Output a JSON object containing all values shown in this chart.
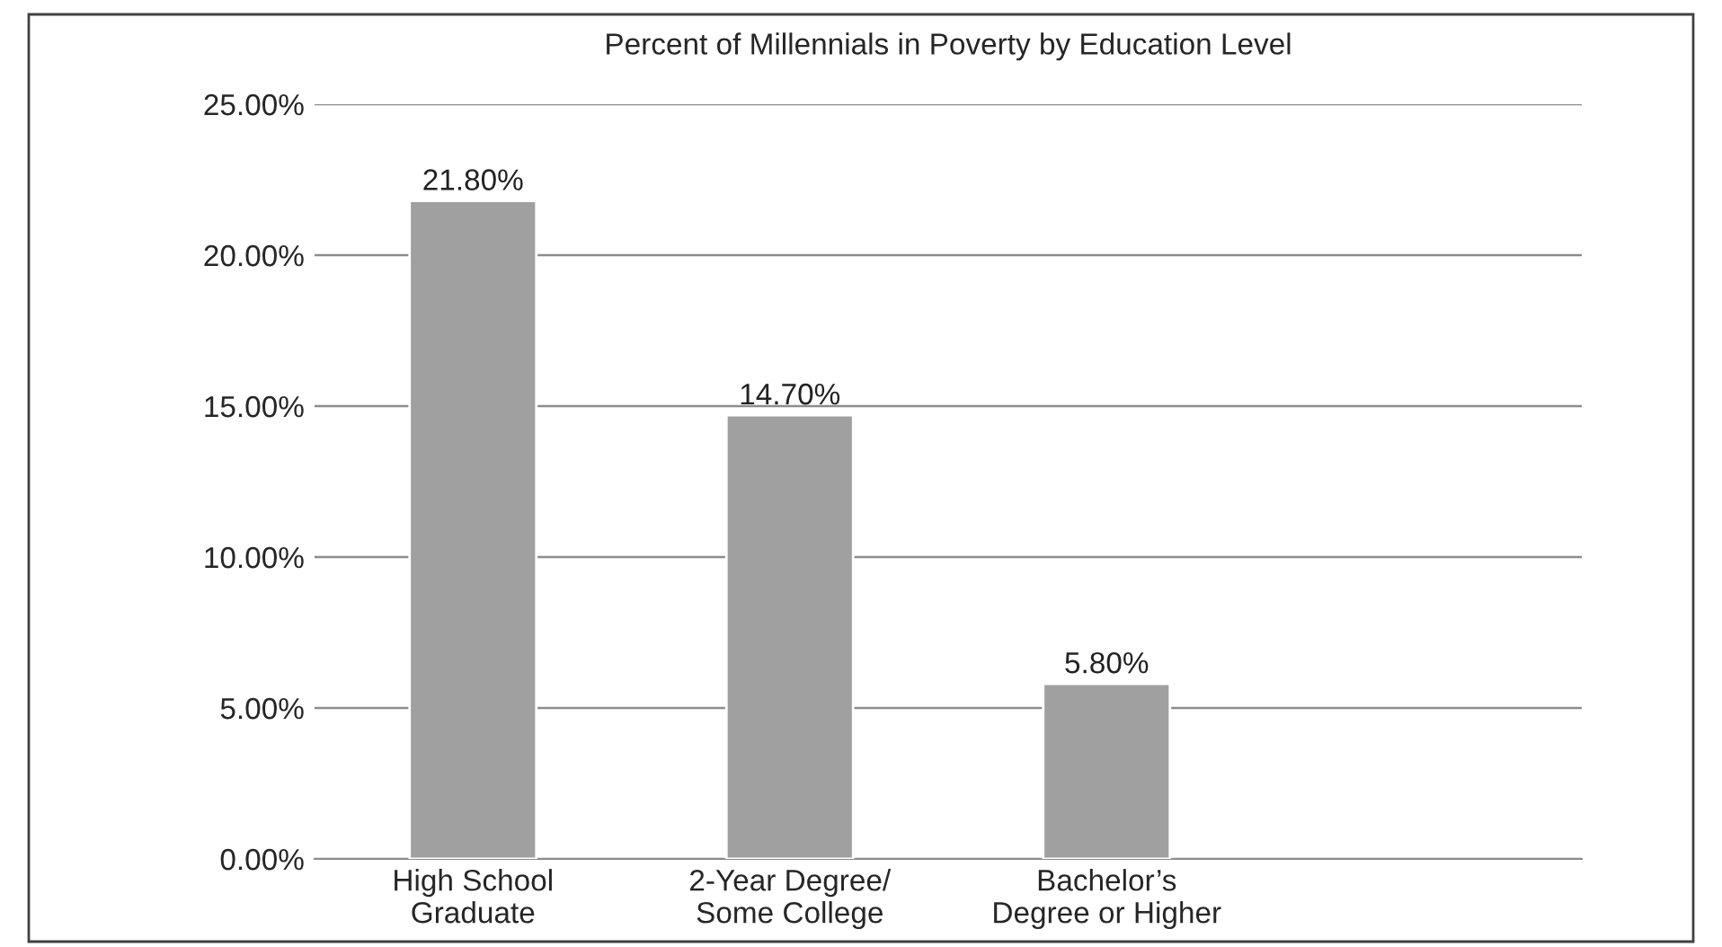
{
  "chart_data": {
    "type": "bar",
    "title": "Percent of Millennials in Poverty by Education Level",
    "categories": [
      "High School\nGraduate",
      "2-Year Degree/\nSome College",
      "Bachelor’s\nDegree or Higher",
      null
    ],
    "values": [
      21.8,
      14.7,
      5.8,
      null
    ],
    "value_labels": [
      "21.80%",
      "14.70%",
      "5.80%",
      null
    ],
    "color": "#a0a0a0",
    "ylim": [
      0,
      25
    ],
    "yticks": [
      {
        "value": 0,
        "label": "0.00%"
      },
      {
        "value": 5,
        "label": "5.00%"
      },
      {
        "value": 10,
        "label": "10.00%"
      },
      {
        "value": 15,
        "label": "15.00%"
      },
      {
        "value": 20,
        "label": "20.00%"
      },
      {
        "value": 25,
        "label": "25.00%"
      }
    ],
    "grid": "y"
  }
}
